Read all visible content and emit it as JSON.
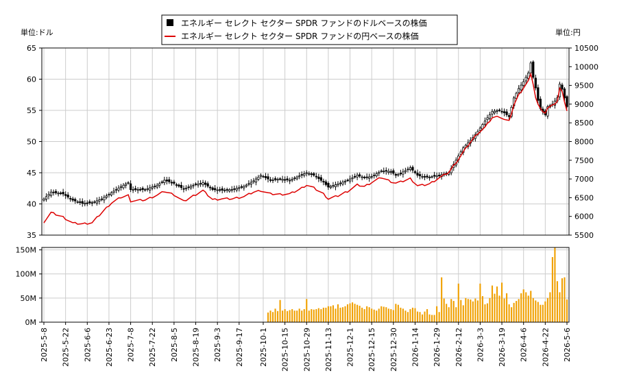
{
  "chart_data": [
    {
      "type": "candlestick",
      "legend_placement": "top-center",
      "grid": true,
      "y_axis_left": {
        "unit_label": "単位:ドル",
        "ylim": [
          35,
          65
        ],
        "ticks": [
          35,
          40,
          45,
          50,
          55,
          60,
          65
        ]
      },
      "y_axis_right": {
        "unit_label": "単位:円",
        "ylim": [
          5500,
          10500
        ],
        "ticks": [
          5500,
          6000,
          6500,
          7000,
          7500,
          8000,
          8500,
          9000,
          9500,
          10000,
          10500
        ]
      },
      "x_ticks": [
        "2025-5-8",
        "2025-5-22",
        "2025-6-6",
        "2025-6-23",
        "2025-7-8",
        "2025-7-22",
        "2025-8-5",
        "2025-8-19",
        "2025-9-3",
        "2025-9-17",
        "2025-10-1",
        "2025-10-15",
        "2025-10-29",
        "2025-11-13",
        "2025-12-1",
        "2025-12-15",
        "2025-12-30",
        "2026-1-14",
        "2026-1-29",
        "2026-2-12",
        "2026-3-3",
        "2026-3-19",
        "2026-4-6",
        "2026-4-22",
        "2026-5-6"
      ],
      "series": [
        {
          "name": "エネルギー セレクト セクター SPDR ファンドのドルベースの株価",
          "color": "#000000",
          "axis": "left",
          "style": "candlestick",
          "close_knots": [
            [
              0,
              40.8
            ],
            [
              3,
              41.9
            ],
            [
              8,
              41.6
            ],
            [
              12,
              40.6
            ],
            [
              16,
              40.1
            ],
            [
              20,
              40.2
            ],
            [
              24,
              40.8
            ],
            [
              28,
              41.8
            ],
            [
              32,
              42.8
            ],
            [
              35,
              43.4
            ],
            [
              36,
              42.3
            ],
            [
              42,
              42.3
            ],
            [
              47,
              43.0
            ],
            [
              50,
              43.8
            ],
            [
              54,
              43.3
            ],
            [
              58,
              42.4
            ],
            [
              62,
              43.0
            ],
            [
              66,
              43.4
            ],
            [
              70,
              42.3
            ],
            [
              74,
              42.2
            ],
            [
              78,
              42.3
            ],
            [
              83,
              42.8
            ],
            [
              87,
              43.7
            ],
            [
              90,
              44.6
            ],
            [
              94,
              43.8
            ],
            [
              98,
              44.0
            ],
            [
              102,
              43.8
            ],
            [
              106,
              44.5
            ],
            [
              109,
              45.0
            ],
            [
              112,
              44.6
            ],
            [
              116,
              43.5
            ],
            [
              118,
              42.7
            ],
            [
              122,
              43.2
            ],
            [
              126,
              43.8
            ],
            [
              130,
              44.6
            ],
            [
              133,
              44.2
            ],
            [
              136,
              44.4
            ],
            [
              140,
              45.3
            ],
            [
              144,
              45.2
            ],
            [
              146,
              44.6
            ],
            [
              148,
              44.9
            ],
            [
              152,
              45.8
            ],
            [
              155,
              44.6
            ],
            [
              158,
              44.3
            ],
            [
              160,
              44.3
            ],
            [
              164,
              44.6
            ],
            [
              168,
              45.0
            ],
            [
              172,
              47.7
            ],
            [
              174,
              49.0
            ],
            [
              177,
              50.2
            ],
            [
              180,
              51.6
            ],
            [
              183,
              53.3
            ],
            [
              186,
              54.8
            ],
            [
              189,
              55.0
            ],
            [
              191,
              54.6
            ],
            [
              193,
              54.0
            ],
            [
              195,
              57.0
            ],
            [
              197,
              58.5
            ],
            [
              199,
              59.6
            ],
            [
              201,
              61.0
            ],
            [
              202,
              62.6
            ],
            [
              203,
              60.3
            ],
            [
              204,
              58.6
            ],
            [
              205,
              56.6
            ],
            [
              206,
              55.3
            ],
            [
              208,
              54.3
            ],
            [
              209,
              55.6
            ],
            [
              211,
              56.0
            ],
            [
              213,
              57.0
            ],
            [
              214,
              59.2
            ],
            [
              215,
              58.4
            ],
            [
              217,
              55.6
            ]
          ]
        },
        {
          "name": "エネルギー セレクト セクター SPDR ファンドの円ベースの株価",
          "color": "#dd0000",
          "axis": "right",
          "style": "line",
          "knots": [
            [
              0,
              5850
            ],
            [
              3,
              6100
            ],
            [
              8,
              5980
            ],
            [
              12,
              5820
            ],
            [
              16,
              5800
            ],
            [
              20,
              5830
            ],
            [
              24,
              6100
            ],
            [
              28,
              6360
            ],
            [
              32,
              6510
            ],
            [
              35,
              6560
            ],
            [
              36,
              6410
            ],
            [
              42,
              6440
            ],
            [
              47,
              6570
            ],
            [
              50,
              6670
            ],
            [
              54,
              6580
            ],
            [
              58,
              6400
            ],
            [
              62,
              6550
            ],
            [
              66,
              6690
            ],
            [
              70,
              6450
            ],
            [
              74,
              6470
            ],
            [
              78,
              6470
            ],
            [
              83,
              6530
            ],
            [
              87,
              6650
            ],
            [
              90,
              6690
            ],
            [
              94,
              6600
            ],
            [
              98,
              6590
            ],
            [
              102,
              6600
            ],
            [
              106,
              6720
            ],
            [
              109,
              6840
            ],
            [
              112,
              6760
            ],
            [
              116,
              6600
            ],
            [
              118,
              6470
            ],
            [
              122,
              6550
            ],
            [
              126,
              6670
            ],
            [
              130,
              6840
            ],
            [
              133,
              6800
            ],
            [
              136,
              6910
            ],
            [
              140,
              7040
            ],
            [
              144,
              6930
            ],
            [
              146,
              6890
            ],
            [
              148,
              6920
            ],
            [
              152,
              7010
            ],
            [
              155,
              6820
            ],
            [
              158,
              6840
            ],
            [
              160,
              6870
            ],
            [
              164,
              7030
            ],
            [
              168,
              7180
            ],
            [
              172,
              7530
            ],
            [
              174,
              7720
            ],
            [
              177,
              7990
            ],
            [
              180,
              8220
            ],
            [
              183,
              8380
            ],
            [
              186,
              8640
            ],
            [
              189,
              8670
            ],
            [
              191,
              8590
            ],
            [
              193,
              8540
            ],
            [
              195,
              8980
            ],
            [
              197,
              9250
            ],
            [
              199,
              9440
            ],
            [
              201,
              9620
            ],
            [
              202,
              9780
            ],
            [
              203,
              9540
            ],
            [
              204,
              9180
            ],
            [
              205,
              8990
            ],
            [
              206,
              8870
            ],
            [
              208,
              8770
            ],
            [
              209,
              8900
            ],
            [
              211,
              8960
            ],
            [
              213,
              9080
            ],
            [
              214,
              9420
            ],
            [
              215,
              9320
            ],
            [
              217,
              8830
            ]
          ]
        }
      ]
    },
    {
      "type": "bar",
      "grid": true,
      "ylim": [
        0,
        155000000
      ],
      "y_ticks": [
        "0M",
        "50M",
        "100M",
        "150M"
      ],
      "y_tick_values": [
        0,
        50000000,
        100000000,
        150000000
      ],
      "color": "#f0a000",
      "first_index": 93,
      "volume_millions": [
        20,
        24,
        21,
        28,
        23,
        46,
        24,
        27,
        23,
        25,
        27,
        24,
        24,
        28,
        24,
        27,
        48,
        24,
        27,
        26,
        27,
        29,
        27,
        30,
        30,
        33,
        33,
        35,
        28,
        37,
        30,
        31,
        33,
        37,
        39,
        41,
        38,
        36,
        34,
        30,
        27,
        33,
        31,
        28,
        26,
        24,
        28,
        33,
        32,
        31,
        28,
        27,
        25,
        38,
        36,
        30,
        28,
        24,
        21,
        27,
        30,
        29,
        22,
        21,
        16,
        22,
        27,
        16,
        15,
        15,
        33,
        21,
        93,
        49,
        38,
        31,
        48,
        44,
        31,
        80,
        46,
        35,
        50,
        48,
        47,
        43,
        49,
        45,
        80,
        54,
        37,
        39,
        50,
        76,
        59,
        74,
        55,
        82,
        49,
        60,
        37,
        31,
        40,
        44,
        48,
        60,
        68,
        62,
        55,
        65,
        50,
        45,
        42,
        36,
        36,
        43,
        50,
        62,
        135,
        155,
        85,
        62,
        91,
        93,
        47,
        35,
        44,
        44,
        47,
        67,
        63,
        70,
        50,
        58,
        47,
        93,
        95,
        56,
        39,
        53,
        55,
        82,
        50,
        40,
        54,
        44,
        37,
        32,
        39,
        41,
        39,
        40,
        38,
        36,
        40,
        40,
        40,
        36,
        24,
        31,
        57,
        53,
        30
      ]
    }
  ],
  "legend": {
    "items": [
      {
        "label": "エネルギー セレクト セクター SPDR ファンドのドルベースの株価",
        "color": "#000000",
        "marker": "square"
      },
      {
        "label": "エネルギー セレクト セクター SPDR ファンドの円ベースの株価",
        "color": "#dd0000",
        "marker": "line"
      }
    ]
  }
}
